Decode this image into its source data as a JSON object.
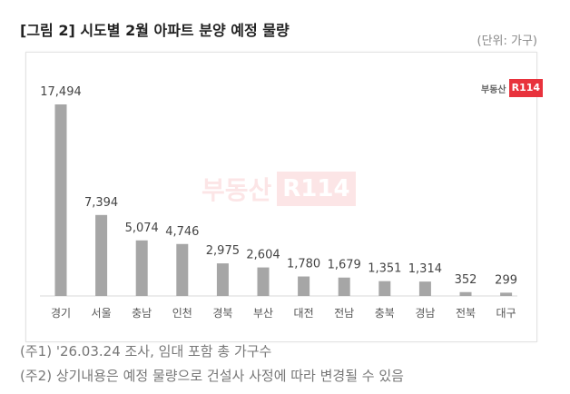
{
  "title": "[그림 2] 시도별 2월 아파트 분양 예정 물량",
  "unit": "(단위: 가구)",
  "logo": {
    "text": "부동산",
    "badge": "R114"
  },
  "notes": [
    "(주1) '26.03.24 조사, 임대 포함 총 가구수",
    "(주2) 상기내용은 예정 물량으로 건설사 사정에 따라 변경될 수 있음"
  ],
  "colors": {
    "bar": "#a6a6a6",
    "brand": "#e8323c"
  },
  "chart_data": {
    "type": "bar",
    "title": "[그림 2] 시도별 2월 아파트 분양 예정 물량",
    "ylabel": "가구",
    "categories": [
      "경기",
      "서울",
      "충남",
      "인천",
      "경북",
      "부산",
      "대전",
      "전남",
      "충북",
      "경남",
      "전북",
      "대구"
    ],
    "values": [
      17494,
      7394,
      5074,
      4746,
      2975,
      2604,
      1780,
      1679,
      1351,
      1314,
      352,
      299
    ],
    "ylim": [
      0,
      17494
    ],
    "grid": false
  }
}
